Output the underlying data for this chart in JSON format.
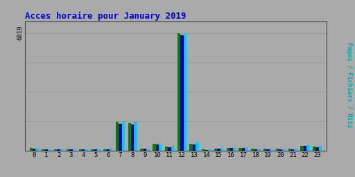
{
  "title": "Acces horaire pour January 2019",
  "ylabel": "Pages / Fichiers / Hits",
  "hours": [
    0,
    1,
    2,
    3,
    4,
    5,
    6,
    7,
    8,
    9,
    10,
    11,
    12,
    13,
    14,
    15,
    16,
    17,
    18,
    19,
    20,
    21,
    22,
    23
  ],
  "pages": [
    130,
    55,
    55,
    70,
    60,
    55,
    75,
    1650,
    1600,
    100,
    380,
    220,
    6819,
    400,
    45,
    120,
    160,
    145,
    95,
    85,
    85,
    95,
    280,
    230
  ],
  "fichiers": [
    110,
    45,
    45,
    58,
    50,
    45,
    62,
    1550,
    1500,
    85,
    340,
    190,
    6700,
    350,
    35,
    100,
    140,
    125,
    80,
    70,
    70,
    80,
    250,
    200
  ],
  "hits": [
    150,
    65,
    65,
    82,
    72,
    65,
    90,
    1700,
    1650,
    115,
    420,
    250,
    6819,
    450,
    55,
    140,
    180,
    165,
    110,
    100,
    100,
    110,
    300,
    260
  ],
  "color_pages": "#008000",
  "color_fichiers": "#0000bb",
  "color_hits": "#00ccff",
  "bg_color": "#aaaaaa",
  "title_color": "#0000cc",
  "ylabel_color": "#00aaaa",
  "grid_color": "#999999",
  "ytick_label": "6819",
  "ylim": [
    0,
    7500
  ],
  "bar_width": 0.25
}
